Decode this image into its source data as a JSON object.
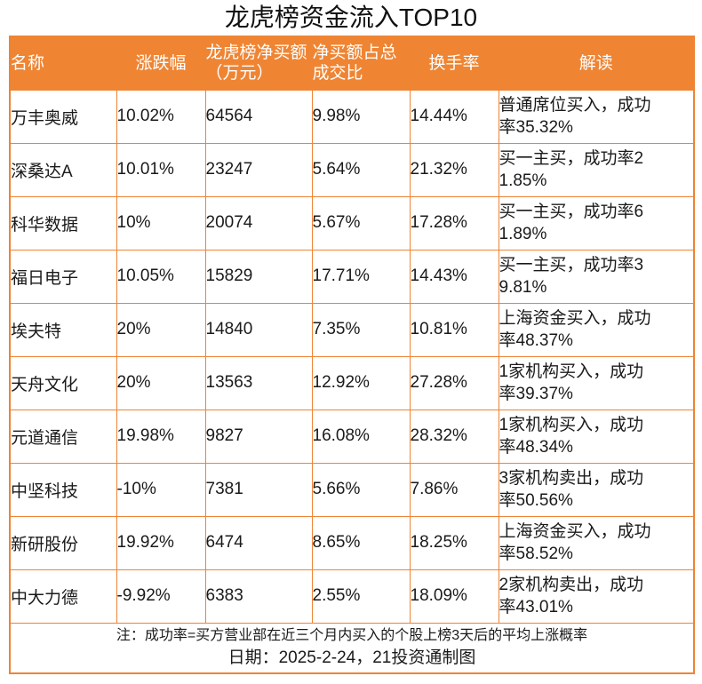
{
  "colors": {
    "header_background": "#EF8533",
    "grid_line": "#EE8434",
    "header_text": "#FFFFFF",
    "body_text": "#1A1A1A"
  },
  "chart_data": {
    "type": "table",
    "title": "龙虎榜资金流入TOP10",
    "columns": {
      "name": "名称",
      "change": "涨跌幅",
      "net_buy": "龙虎榜净买额（万元）",
      "net_buy_ratio": "净买额占总成交比",
      "turnover": "换手率",
      "interpretation": "解读"
    },
    "rows": [
      {
        "name": "万丰奥威",
        "change": "10.02%",
        "net_buy": "64564",
        "net_buy_ratio": "9.98%",
        "turnover": "14.44%",
        "interpretation": "普通席位买入，成功率35.32%"
      },
      {
        "name": "深桑达A",
        "change": "10.01%",
        "net_buy": "23247",
        "net_buy_ratio": "5.64%",
        "turnover": "21.32%",
        "interpretation": "买一主买，成功率21.85%"
      },
      {
        "name": "科华数据",
        "change": "10%",
        "net_buy": "20074",
        "net_buy_ratio": "5.67%",
        "turnover": "17.28%",
        "interpretation": "买一主买，成功率61.89%"
      },
      {
        "name": "福日电子",
        "change": "10.05%",
        "net_buy": "15829",
        "net_buy_ratio": "17.71%",
        "turnover": "14.43%",
        "interpretation": "买一主买，成功率39.81%"
      },
      {
        "name": "埃夫特",
        "change": "20%",
        "net_buy": "14840",
        "net_buy_ratio": "7.35%",
        "turnover": "10.81%",
        "interpretation": "上海资金买入，成功率48.37%"
      },
      {
        "name": "天舟文化",
        "change": "20%",
        "net_buy": "13563",
        "net_buy_ratio": "12.92%",
        "turnover": "27.28%",
        "interpretation": "1家机构买入，成功率39.37%"
      },
      {
        "name": "元道通信",
        "change": "19.98%",
        "net_buy": "9827",
        "net_buy_ratio": "16.08%",
        "turnover": "28.32%",
        "interpretation": "1家机构买入，成功率48.34%"
      },
      {
        "name": "中坚科技",
        "change": "-10%",
        "net_buy": "7381",
        "net_buy_ratio": "5.66%",
        "turnover": "7.86%",
        "interpretation": "3家机构卖出，成功率50.56%"
      },
      {
        "name": "新研股份",
        "change": "19.92%",
        "net_buy": "6474",
        "net_buy_ratio": "8.65%",
        "turnover": "18.25%",
        "interpretation": "上海资金买入，成功率58.52%"
      },
      {
        "name": "中大力德",
        "change": "-9.92%",
        "net_buy": "6383",
        "net_buy_ratio": "2.55%",
        "turnover": "18.09%",
        "interpretation": "2家机构卖出，成功率43.01%"
      }
    ]
  },
  "footer": {
    "note": "注：成功率=买方营业部在近三个月内买入的个股上榜3天后的平均上涨概率",
    "credit": "日期：2025-2-24，21投资通制图"
  }
}
